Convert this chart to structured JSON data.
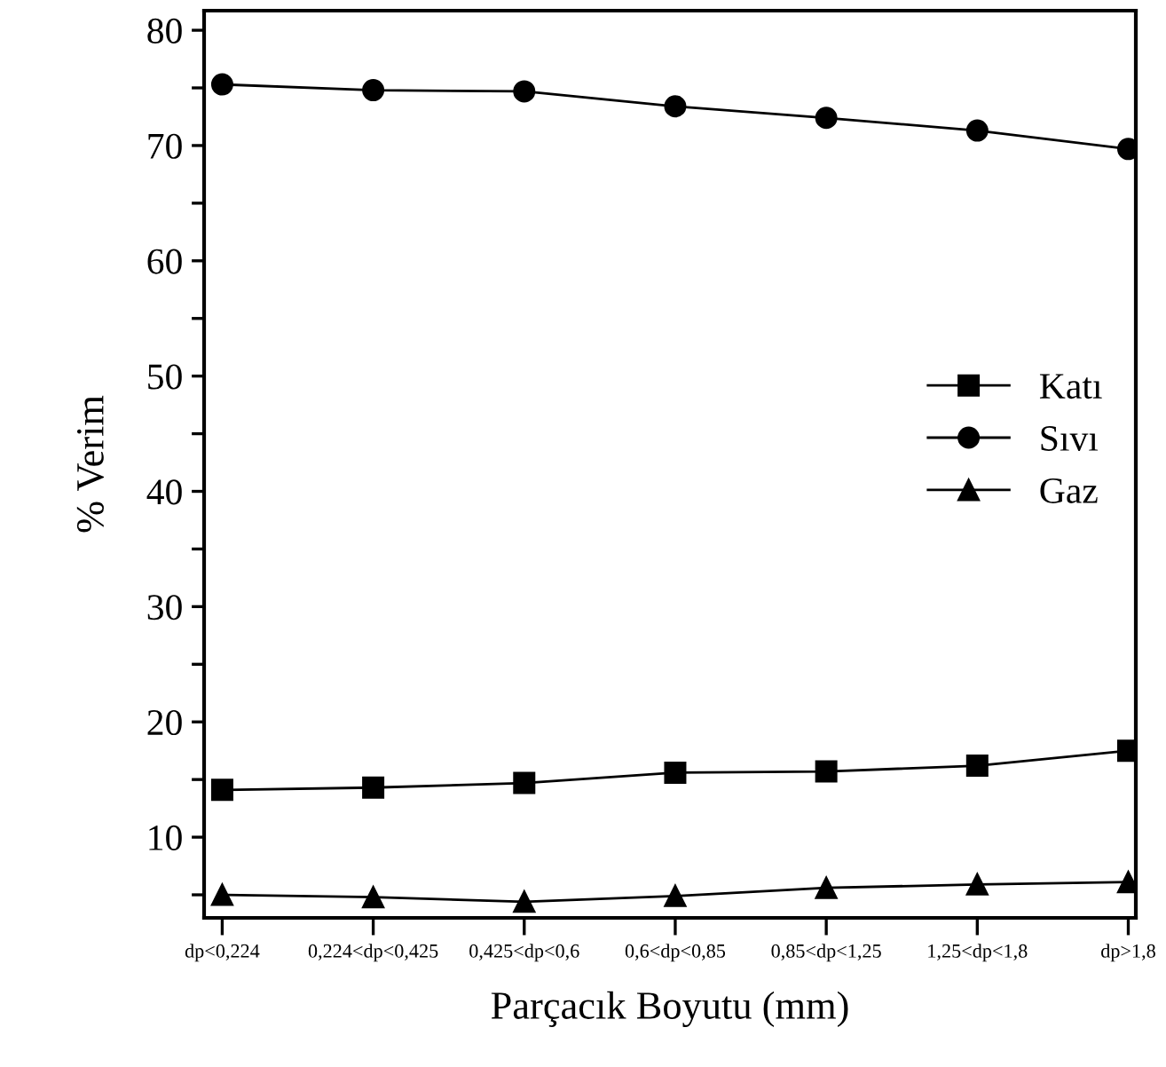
{
  "chart_data": {
    "type": "line",
    "xlabel": "Parçacık Boyutu (mm)",
    "ylabel": "% Verim",
    "categories": [
      "dp<0,224",
      "0,224<dp<0,425",
      "0,425<dp<0,6",
      "0,6<dp<0,85",
      "0,85<dp<1,25",
      "1,25<dp<1,8",
      "dp>1,8"
    ],
    "series": [
      {
        "name": "Katı",
        "color": "#000000",
        "marker": "square",
        "values": [
          14.1,
          14.3,
          14.7,
          15.6,
          15.7,
          16.2,
          17.5
        ]
      },
      {
        "name": "Sıvı",
        "color": "#000000",
        "marker": "circle",
        "values": [
          75.3,
          74.8,
          74.7,
          73.4,
          72.4,
          71.3,
          69.7
        ]
      },
      {
        "name": "Gaz",
        "color": "#000000",
        "marker": "triangle",
        "values": [
          5.0,
          4.8,
          4.4,
          4.9,
          5.6,
          5.9,
          6.1
        ]
      }
    ],
    "ylim": [
      3,
      81.7
    ],
    "yticks": [
      {
        "value": 5,
        "label": null
      },
      10,
      {
        "value": 15,
        "label": null
      },
      20,
      {
        "value": 25,
        "label": null
      },
      30,
      {
        "value": 35,
        "label": null
      },
      40,
      {
        "value": 45,
        "label": null
      },
      50,
      {
        "value": 55,
        "label": null
      },
      60,
      {
        "value": 65,
        "label": null
      },
      70,
      {
        "value": 75,
        "label": null
      },
      80
    ],
    "legend": "center right",
    "grid": false,
    "line_style": "solid"
  }
}
